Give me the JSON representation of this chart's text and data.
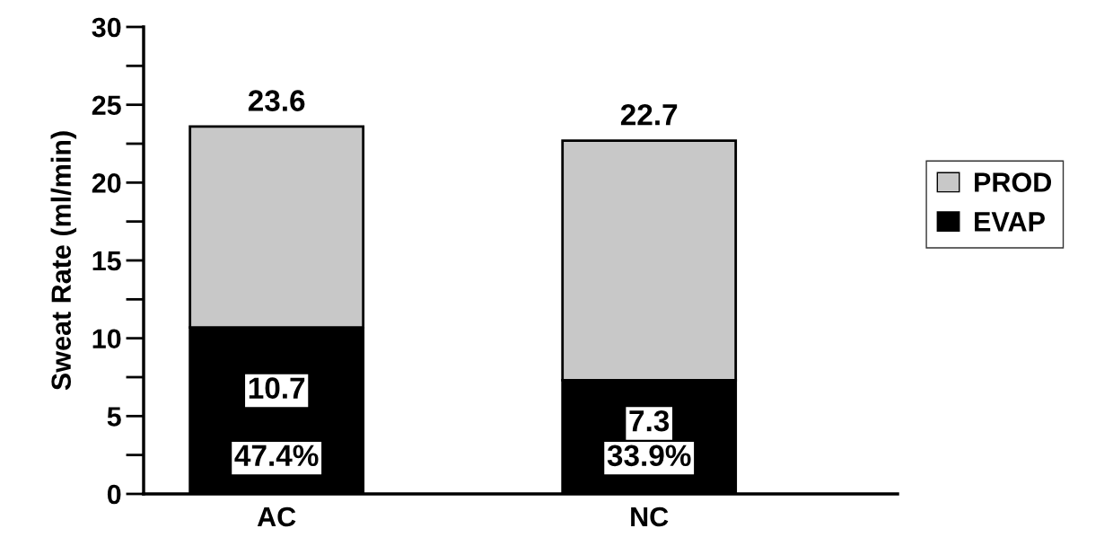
{
  "chart_data": {
    "type": "bar",
    "stacked": true,
    "ylabel": "Sweat Rate (ml/min)",
    "categories": [
      "AC",
      "NC"
    ],
    "series": [
      {
        "name": "EVAP",
        "color": "#000000",
        "values": [
          10.7,
          7.3
        ],
        "value_labels": [
          "10.7",
          "7.3"
        ]
      },
      {
        "name": "PROD",
        "color": "#c8c8c8",
        "values": [
          12.9,
          15.4
        ]
      }
    ],
    "totals": [
      "23.6",
      "22.7"
    ],
    "annotations": [
      "47.4%",
      "33.9%"
    ],
    "ylim": [
      0,
      30
    ],
    "yticks": [
      0,
      5,
      10,
      15,
      20,
      25,
      30
    ],
    "grid": false,
    "legend": "right"
  }
}
